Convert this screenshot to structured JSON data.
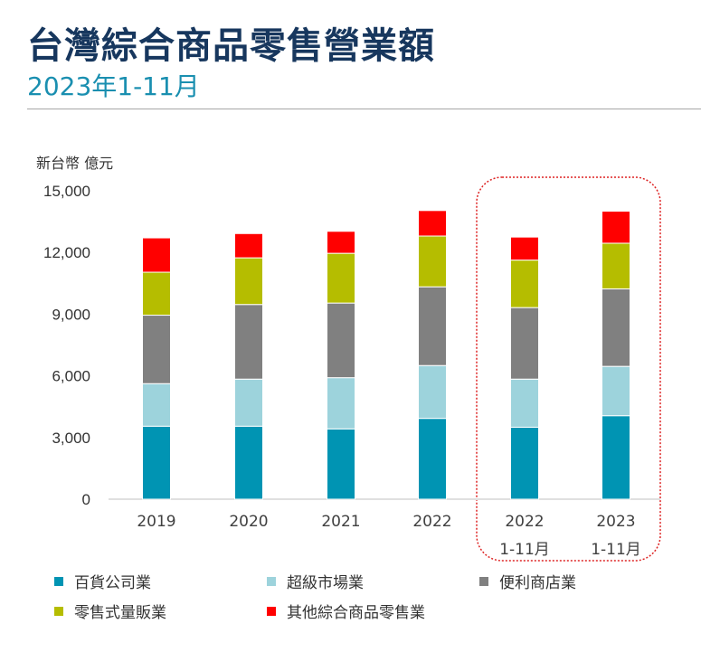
{
  "header": {
    "title": "台灣綜合商品零售營業額",
    "subtitle": "2023年1-11月"
  },
  "chart_data": {
    "type": "bar",
    "stacked": true,
    "title": "台灣綜合商品零售營業額",
    "subtitle": "2023年1-11月",
    "ylabel": "新台幣 億元",
    "ylim": [
      0,
      15000
    ],
    "yticks": [
      "0",
      "3,000",
      "6,000",
      "9,000",
      "12,000",
      "15,000"
    ],
    "categories": [
      [
        "2019"
      ],
      [
        "2020"
      ],
      [
        "2021"
      ],
      [
        "2022"
      ],
      [
        "2022",
        "1-11月"
      ],
      [
        "2023",
        "1-11月"
      ]
    ],
    "highlighted_categories": [
      4,
      5
    ],
    "grid": false,
    "legend_position": "bottom",
    "series": [
      {
        "name": "百貨公司業",
        "color": "#0094b3",
        "values": [
          3550,
          3550,
          3420,
          3930,
          3500,
          4060
        ]
      },
      {
        "name": "超級市場業",
        "color": "#9dd3dc",
        "values": [
          2070,
          2290,
          2490,
          2570,
          2340,
          2400
        ]
      },
      {
        "name": "便利商店業",
        "color": "#808080",
        "values": [
          3330,
          3630,
          3630,
          3830,
          3480,
          3770
        ]
      },
      {
        "name": "零售式量販業",
        "color": "#b5bd00",
        "values": [
          2090,
          2270,
          2420,
          2470,
          2310,
          2220
        ]
      },
      {
        "name": "其他綜合商品零售業",
        "color": "#ff0000",
        "values": [
          1670,
          1180,
          1070,
          1240,
          1120,
          1560
        ]
      }
    ]
  }
}
